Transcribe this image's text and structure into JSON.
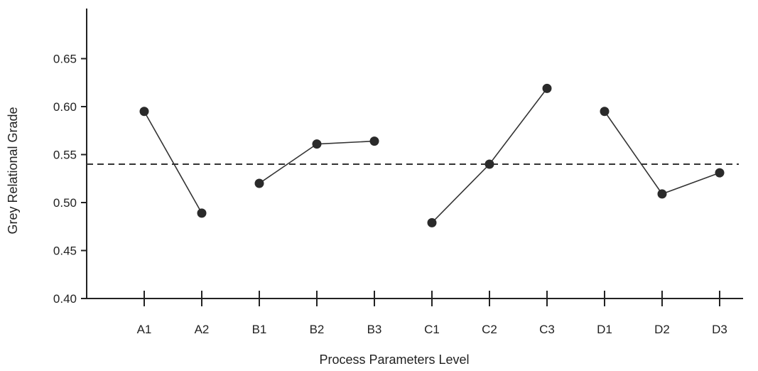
{
  "chart_data": {
    "type": "line",
    "title": "",
    "xlabel": "Process Parameters Level",
    "ylabel": "Grey Relational Grade",
    "ylim": [
      0.4,
      0.7
    ],
    "yticks": [
      "0.40",
      "0.45",
      "0.50",
      "0.55",
      "0.60",
      "0.65"
    ],
    "categories": [
      "A1",
      "A2",
      "B1",
      "B2",
      "B3",
      "C1",
      "C2",
      "C3",
      "D1",
      "D2",
      "D3"
    ],
    "groups": [
      {
        "factor": "A",
        "levels": [
          "A1",
          "A2"
        ],
        "values": [
          0.595,
          0.489
        ]
      },
      {
        "factor": "B",
        "levels": [
          "B1",
          "B2",
          "B3"
        ],
        "values": [
          0.52,
          0.561,
          0.564
        ]
      },
      {
        "factor": "C",
        "levels": [
          "C1",
          "C2",
          "C3"
        ],
        "values": [
          0.479,
          0.54,
          0.619
        ]
      },
      {
        "factor": "D",
        "levels": [
          "D1",
          "D2",
          "D3"
        ],
        "values": [
          0.595,
          0.509,
          0.531
        ]
      }
    ],
    "reference_line": {
      "style": "dashed",
      "value": 0.54
    },
    "grid": false,
    "colors": {
      "line": "#333333",
      "marker": "#2a2a2a"
    }
  }
}
